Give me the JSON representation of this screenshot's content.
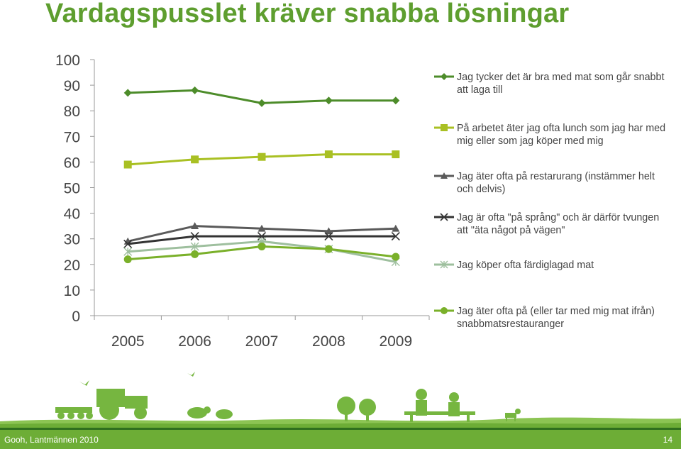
{
  "slide": {
    "title": "Vardagspusslet kräver snabba lösningar",
    "footer_left": "Gooh, Lantmännen 2010",
    "page_number": "14"
  },
  "colors": {
    "title": "#5e9e2f",
    "footer": "#6dad36",
    "scenery": "#76b640"
  },
  "chart_data": {
    "type": "line",
    "x": [
      "2005",
      "2006",
      "2007",
      "2008",
      "2009"
    ],
    "ylim": [
      0,
      100
    ],
    "yticks": [
      "0",
      "10",
      "20",
      "30",
      "40",
      "50",
      "60",
      "70",
      "80",
      "90",
      "100"
    ],
    "grid": false,
    "legend_position": "right",
    "series": [
      {
        "name": "Jag tycker det är bra med mat som går snabbt att laga till",
        "values": [
          87,
          88,
          83,
          84,
          84
        ],
        "color": "#4d8c2a",
        "marker": "diamond"
      },
      {
        "name": "På arbetet äter jag ofta lunch som jag har med mig eller som jag köper med mig",
        "values": [
          59,
          61,
          62,
          63,
          63
        ],
        "color": "#a9c023",
        "marker": "square"
      },
      {
        "name": "Jag äter ofta på restarurang (instämmer helt och delvis)",
        "values": [
          29,
          35,
          34,
          33,
          34
        ],
        "color": "#5a5a5a",
        "marker": "triangle"
      },
      {
        "name": "Jag är ofta \"på språng\" och är därför tvungen att \"äta något på vägen\"",
        "values": [
          28,
          31,
          31,
          31,
          31
        ],
        "color": "#333333",
        "marker": "x"
      },
      {
        "name": "Jag köper ofta färdiglagad mat",
        "values": [
          25,
          27,
          29,
          26,
          21
        ],
        "color": "#9ebf9e",
        "marker": "star"
      },
      {
        "name": "Jag äter ofta på (eller tar med mig mat ifrån) snabbmatsrestauranger",
        "values": [
          22,
          24,
          27,
          26,
          23
        ],
        "color": "#7ab02a",
        "marker": "circle"
      }
    ]
  }
}
